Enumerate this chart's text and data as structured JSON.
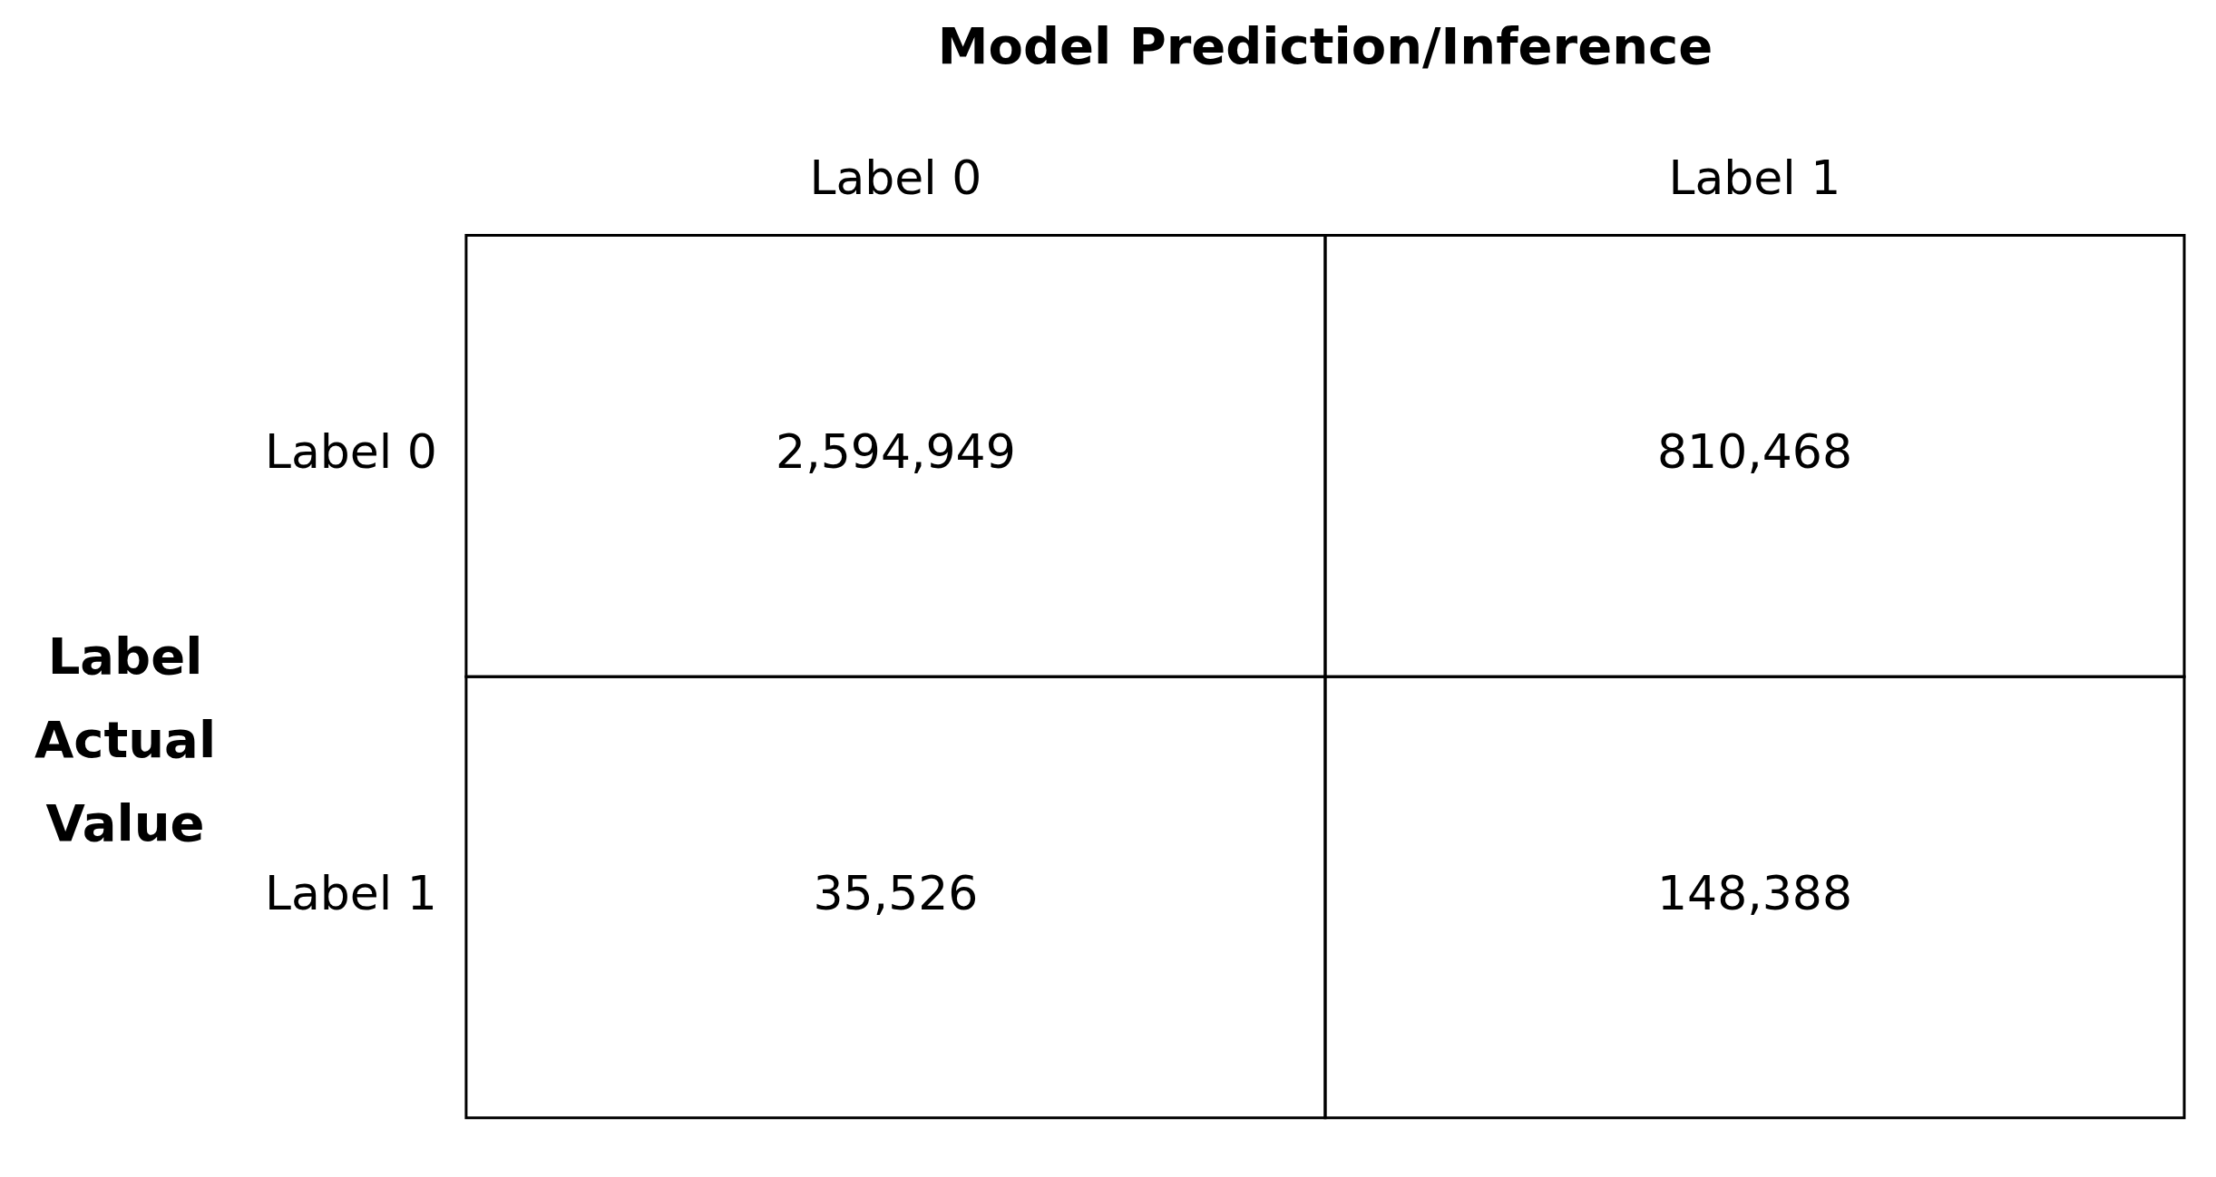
{
  "chart_data": {
    "type": "heatmap",
    "xlabel": "Model Prediction/Inference",
    "ylabel": "Label Actual Value",
    "categories": [
      "Label 0",
      "Label 1"
    ],
    "y_categories": [
      "Label 0",
      "Label 1"
    ],
    "cells": [
      [
        2594949,
        810468
      ],
      [
        35526,
        148388
      ]
    ],
    "cell_labels": [
      [
        "2,594,949",
        "810,468"
      ],
      [
        "35,526",
        "148,388"
      ]
    ]
  }
}
